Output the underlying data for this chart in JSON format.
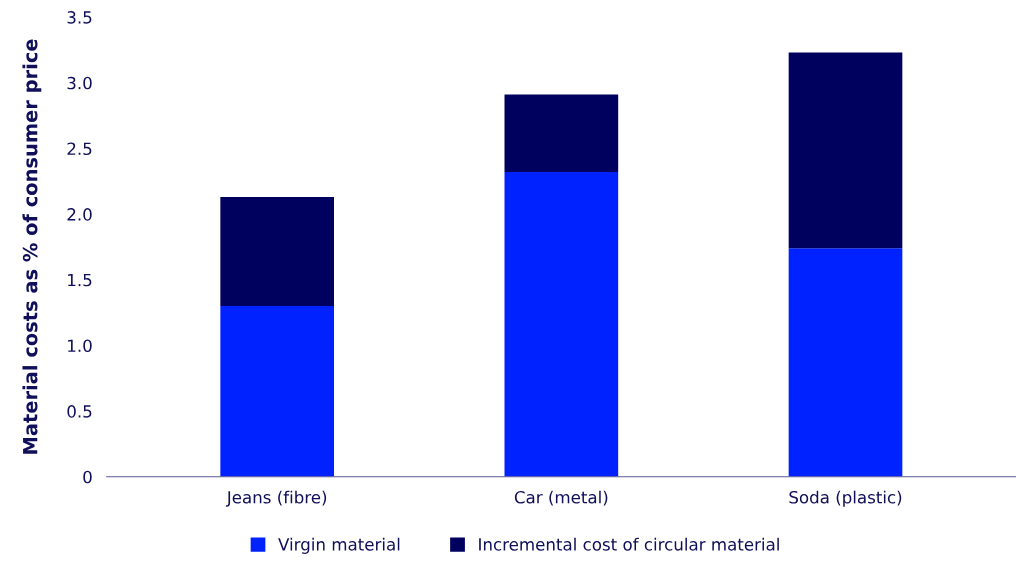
{
  "chart_data": {
    "type": "bar",
    "stacked": true,
    "ylabel": "Material costs as % of consumer price",
    "categories": [
      "Jeans (fibre)",
      "Car (metal)",
      "Soda (plastic)"
    ],
    "series": [
      {
        "name": "Virgin material",
        "color": "#0022ff",
        "values": [
          1.3,
          2.32,
          1.74
        ]
      },
      {
        "name": "Incremental cost of circular material",
        "color": "#00005f",
        "values": [
          0.83,
          0.59,
          1.49
        ]
      }
    ],
    "ylim": [
      0,
      3.5
    ],
    "yticks": [
      {
        "value": 0,
        "label": "0"
      },
      {
        "value": 0.5,
        "label": "0.5"
      },
      {
        "value": 1,
        "label": "1.0"
      },
      {
        "value": 1.5,
        "label": "1.5"
      },
      {
        "value": 2,
        "label": "2.0"
      },
      {
        "value": 2.5,
        "label": "2.5"
      },
      {
        "value": 3,
        "label": "3.0"
      },
      {
        "value": 3.5,
        "label": "3.5"
      }
    ],
    "grid": false,
    "legend": "bottom"
  }
}
